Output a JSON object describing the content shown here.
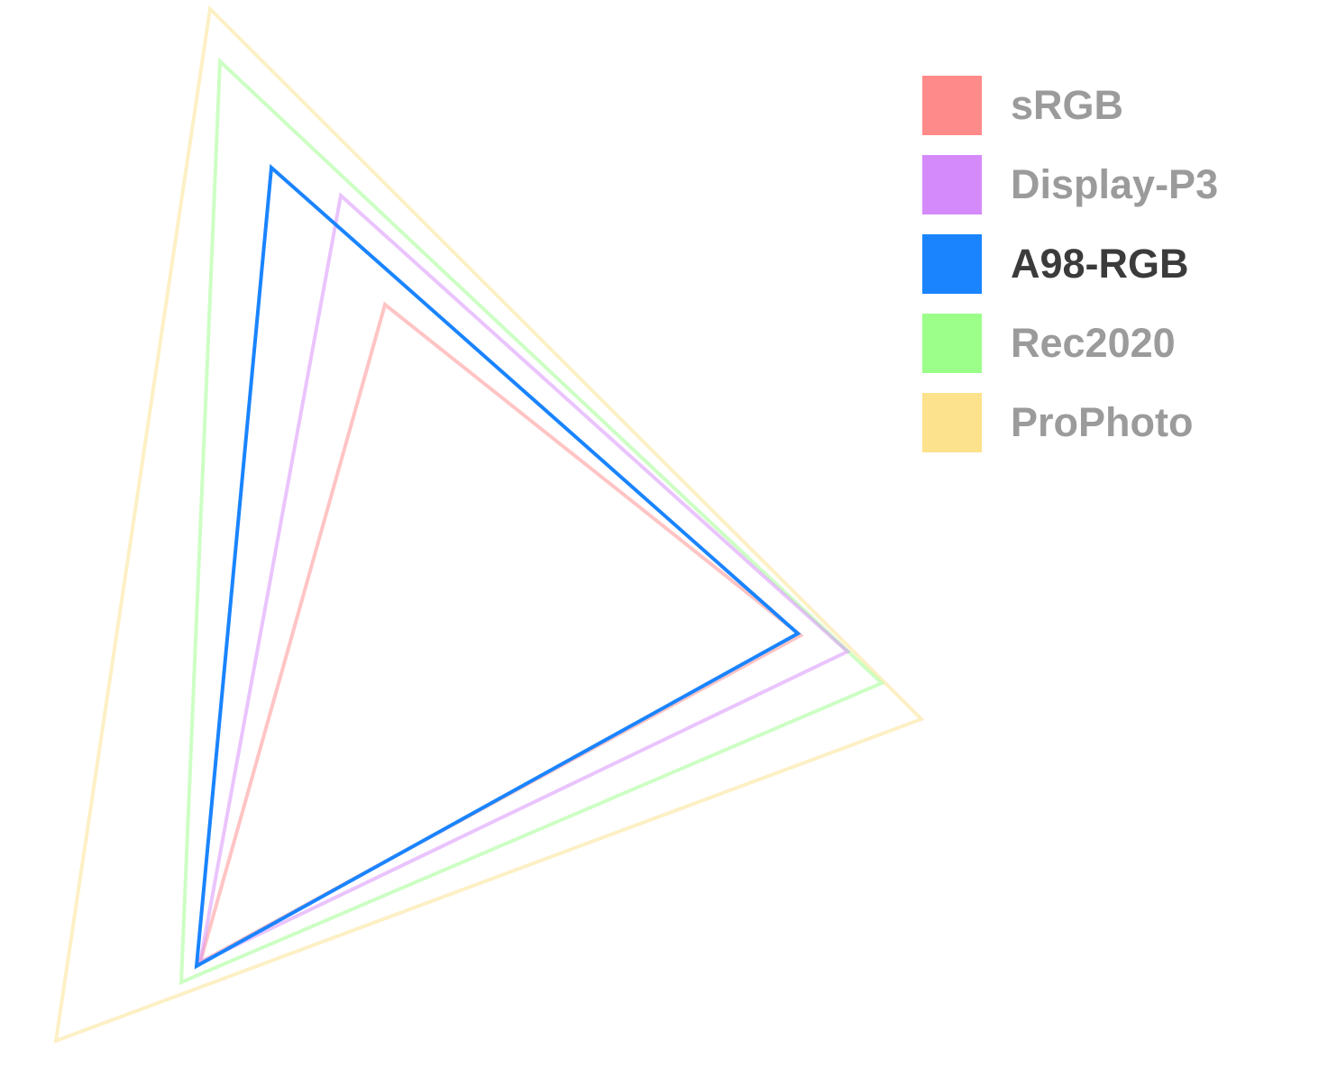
{
  "legend": {
    "items": [
      {
        "label": "sRGB",
        "color": "#ff8a8a",
        "active": false
      },
      {
        "label": "Display-P3",
        "color": "#d58afb",
        "active": false
      },
      {
        "label": "A98-RGB",
        "color": "#1a84ff",
        "active": true
      },
      {
        "label": "Rec2020",
        "color": "#9cff8a",
        "active": false
      },
      {
        "label": "ProPhoto",
        "color": "#fce28c",
        "active": false
      }
    ]
  }
}
